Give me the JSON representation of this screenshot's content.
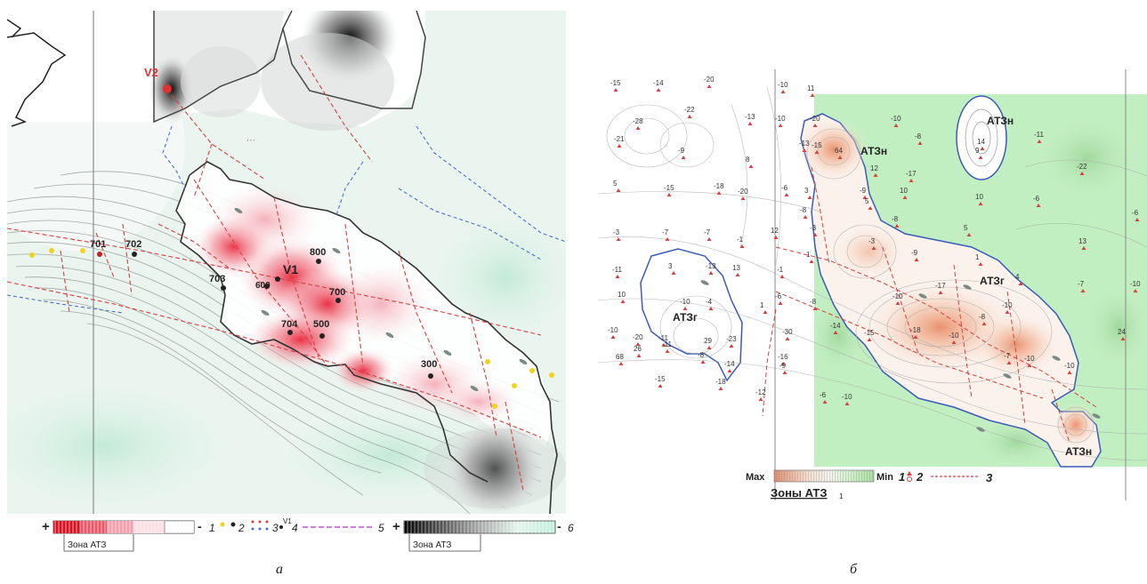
{
  "panel_a": {
    "caption": "а",
    "wells": [
      {
        "label": "V2",
        "color": "#e03030"
      },
      {
        "label": "701",
        "color": "#222"
      },
      {
        "label": "702",
        "color": "#222"
      },
      {
        "label": "703",
        "color": "#222"
      },
      {
        "label": "V1",
        "color": "#222"
      },
      {
        "label": "600",
        "color": "#222"
      },
      {
        "label": "800",
        "color": "#222"
      },
      {
        "label": "700",
        "color": "#222"
      },
      {
        "label": "704",
        "color": "#222"
      },
      {
        "label": "500",
        "color": "#222"
      },
      {
        "label": "300",
        "color": "#222"
      }
    ],
    "legend": {
      "plus": "+",
      "minus": "-",
      "zone_left": "Зона АТЗ",
      "zone_right": "Зона АТЗ",
      "n1": "1",
      "n2": "2",
      "n3": "3",
      "n4": "4",
      "v1": "V1",
      "n5": "5",
      "n6": "6"
    }
  },
  "panel_b": {
    "caption": "б",
    "zone_labels": [
      "АТЗн",
      "АТЗн",
      "АТЗг",
      "АТЗг",
      "АТЗн"
    ],
    "values": [
      "-15",
      "-14",
      "-20",
      "-10",
      "11",
      "-28",
      "-22",
      "-13",
      "-10",
      "-20",
      "-21",
      "-9",
      "8",
      "-13",
      "-10",
      "5",
      "-15",
      "-18",
      "-20",
      "-6",
      "-15",
      "64",
      "12",
      "14",
      "-11",
      "-8",
      "3",
      "-9",
      "10",
      "9",
      "-17",
      "-22",
      "-8",
      "5",
      "10",
      "-6",
      "-6",
      "-8",
      "-3",
      "-7",
      "-7",
      "-1",
      "12",
      "-3",
      "-3",
      "5",
      "13",
      "-11",
      "3",
      "-13",
      "13",
      "-1",
      "1",
      "-9",
      "1",
      "4",
      "-7",
      "-10",
      "10",
      "-10",
      "-4",
      "1",
      "-6",
      "-8",
      "-10",
      "-17",
      "-10",
      "-10",
      "-20",
      "-11",
      "29",
      "-23",
      "-30",
      "-14",
      "-18",
      "24",
      "68",
      "26",
      "-11",
      "-8",
      "-14",
      "-16",
      "-15",
      "-10",
      "-8",
      "-7",
      "-10",
      "-10",
      "-15",
      "-18",
      "-12",
      "-9",
      "-6",
      "-10"
    ],
    "legend": {
      "max": "Max",
      "min": "Min",
      "zone": "Зоны АТЗ",
      "zone_sub": "1",
      "n1": "1",
      "n2": "2",
      "n3": "3"
    }
  },
  "colors": {
    "positive_anomaly": "#e8283c",
    "negative_anomaly": "#111111",
    "green_zone": "#c2efc2",
    "boundary": "#2244aa",
    "faults": "#d84040"
  }
}
